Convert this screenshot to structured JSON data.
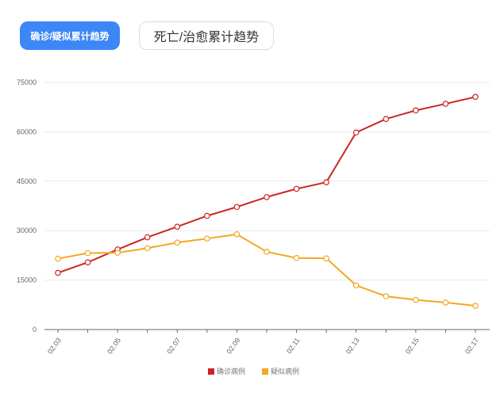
{
  "tabs": [
    {
      "label": "确诊/疑似累计趋势",
      "active": true
    },
    {
      "label": "死亡/治愈累计趋势",
      "active": false
    }
  ],
  "colors": {
    "accent": "#3d86f7",
    "confirmed": "#cc2525",
    "suspected": "#f5a623"
  },
  "chart_data": {
    "type": "line",
    "x": [
      "02.03",
      "02.04",
      "02.05",
      "02.06",
      "02.07",
      "02.08",
      "02.09",
      "02.10",
      "02.11",
      "02.12",
      "02.13",
      "02.14",
      "02.15",
      "02.16",
      "02.17"
    ],
    "x_tick_labels": [
      "02.03",
      "02.05",
      "02.07",
      "02.09",
      "02.11",
      "02.13",
      "02.15",
      "02.17"
    ],
    "y_ticks": [
      "0",
      "15000",
      "30000",
      "45000",
      "60000",
      "75000"
    ],
    "ylim": [
      0,
      75000
    ],
    "grid": true,
    "legend": "bottom-center",
    "series": [
      {
        "name": "确诊病例",
        "color": "#cc2525",
        "values": [
          17200,
          20400,
          24300,
          28000,
          31200,
          34500,
          37200,
          40200,
          42700,
          44700,
          59800,
          63900,
          66500,
          68500,
          70600
        ]
      },
      {
        "name": "疑似病例",
        "color": "#f5a623",
        "values": [
          21500,
          23200,
          23300,
          24700,
          26400,
          27600,
          28900,
          23600,
          21700,
          21600,
          13400,
          10100,
          9000,
          8200,
          7200
        ]
      }
    ]
  }
}
